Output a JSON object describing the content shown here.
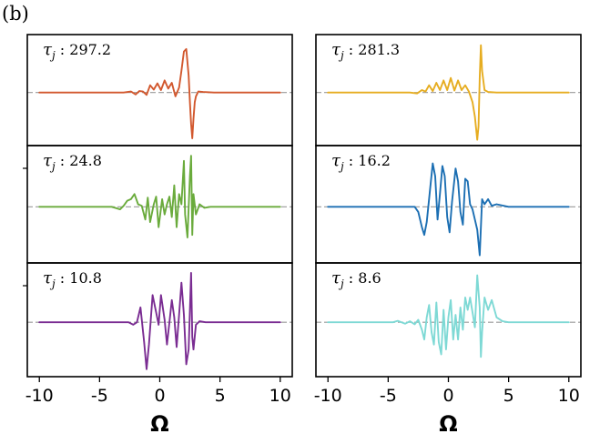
{
  "figure": {
    "panel_letter": "(b)"
  },
  "chart_data": {
    "type": "line",
    "panel_label": "(b)",
    "xlabel": "Ω",
    "xlim": [
      -11,
      11
    ],
    "xticks": [
      "-10",
      "-5",
      "0",
      "5",
      "10"
    ],
    "zero_line_color": "#999999",
    "columns": [
      {
        "panels": [
          {
            "tau_symbol": "τ",
            "tau_subscript": "j",
            "tau_value": "297.2",
            "color": "#d2582e",
            "ylim": [
              -1.1,
              1.2
            ],
            "x": [
              -10,
              -3.0,
              -2.4,
              -2.0,
              -1.7,
              -1.4,
              -1.1,
              -0.8,
              -0.5,
              -0.2,
              0.1,
              0.4,
              0.7,
              1.0,
              1.3,
              1.6,
              1.8,
              2.0,
              2.2,
              2.4,
              2.5,
              2.6,
              2.7,
              2.8,
              2.9,
              3.0,
              3.2,
              3.6,
              4.5,
              10
            ],
            "y": [
              0,
              0,
              0.02,
              -0.04,
              0.03,
              0.02,
              -0.05,
              0.15,
              0.06,
              0.19,
              0.05,
              0.25,
              0.08,
              0.2,
              -0.08,
              0.1,
              0.45,
              0.85,
              0.9,
              0.35,
              -0.2,
              -0.65,
              -0.95,
              -0.55,
              -0.2,
              -0.08,
              0.02,
              0.01,
              0,
              0
            ]
          },
          {
            "tau_symbol": "τ",
            "tau_subscript": "j",
            "tau_value": "24.8",
            "color": "#6aab3c",
            "ylim": [
              -1.1,
              1.2
            ],
            "x": [
              -10,
              -4.0,
              -3.3,
              -3.0,
              -2.7,
              -2.4,
              -2.1,
              -1.8,
              -1.5,
              -1.2,
              -1.0,
              -0.8,
              -0.5,
              -0.3,
              -0.1,
              0.2,
              0.4,
              0.6,
              0.8,
              1.0,
              1.2,
              1.4,
              1.6,
              1.8,
              2.0,
              2.1,
              2.3,
              2.5,
              2.6,
              2.7,
              2.8,
              3.0,
              3.3,
              3.7,
              4.2,
              10
            ],
            "y": [
              0,
              0,
              -0.05,
              0.02,
              0.12,
              0.15,
              0.25,
              0.05,
              0.02,
              -0.25,
              0.18,
              -0.3,
              0.05,
              0.2,
              -0.4,
              0.15,
              -0.15,
              0.05,
              0.2,
              -0.2,
              0.42,
              -0.4,
              0.25,
              0.05,
              0.9,
              -0.15,
              -0.6,
              0.6,
              1.0,
              -0.55,
              0.25,
              -0.15,
              0.05,
              -0.02,
              0,
              0
            ]
          },
          {
            "tau_symbol": "τ",
            "tau_subscript": "j",
            "tau_value": "10.8",
            "color": "#7a2c92",
            "ylim": [
              -1.1,
              1.2
            ],
            "x": [
              -10,
              -2.6,
              -2.2,
              -1.9,
              -1.6,
              -1.3,
              -1.1,
              -0.9,
              -0.6,
              -0.3,
              -0.1,
              0.1,
              0.4,
              0.6,
              0.8,
              1.0,
              1.2,
              1.4,
              1.6,
              1.8,
              2.0,
              2.2,
              2.4,
              2.6,
              2.7,
              2.8,
              3.0,
              3.3,
              3.8,
              10
            ],
            "y": [
              0,
              0,
              -0.05,
              0.0,
              0.3,
              -0.4,
              -0.95,
              -0.45,
              0.55,
              0.2,
              -0.05,
              0.55,
              0.05,
              -0.45,
              0.0,
              0.45,
              0.1,
              -0.5,
              0.15,
              0.8,
              0.15,
              -0.85,
              -0.55,
              1.0,
              -0.3,
              -0.55,
              -0.05,
              0.02,
              0,
              0
            ]
          }
        ]
      },
      {
        "panels": [
          {
            "tau_symbol": "τ",
            "tau_subscript": "j",
            "tau_value": "281.3",
            "color": "#e6ad21",
            "ylim": [
              -1.1,
              1.2
            ],
            "x": [
              -10,
              -3.2,
              -2.6,
              -2.2,
              -1.9,
              -1.6,
              -1.3,
              -1.0,
              -0.7,
              -0.4,
              -0.1,
              0.2,
              0.5,
              0.8,
              1.1,
              1.4,
              1.7,
              2.0,
              2.2,
              2.4,
              2.5,
              2.6,
              2.7,
              2.8,
              3.0,
              3.3,
              4.0,
              10
            ],
            "y": [
              0,
              0,
              -0.02,
              0.05,
              0.02,
              0.15,
              0.03,
              0.2,
              0.05,
              0.25,
              0.05,
              0.3,
              0.04,
              0.25,
              0.05,
              0.15,
              0.02,
              -0.2,
              -0.5,
              -0.98,
              -0.7,
              0.3,
              0.98,
              0.45,
              0.05,
              0.01,
              0,
              0
            ]
          },
          {
            "tau_symbol": "τ",
            "tau_subscript": "j",
            "tau_value": "16.2",
            "color": "#1c6fb3",
            "ylim": [
              -1.1,
              1.2
            ],
            "x": [
              -10,
              -3.2,
              -2.8,
              -2.5,
              -2.2,
              -2.0,
              -1.8,
              -1.5,
              -1.3,
              -1.1,
              -0.9,
              -0.7,
              -0.5,
              -0.3,
              -0.1,
              0.1,
              0.3,
              0.6,
              0.8,
              1.0,
              1.2,
              1.4,
              1.6,
              1.8,
              2.0,
              2.2,
              2.4,
              2.6,
              2.8,
              3.0,
              3.3,
              3.6,
              4.0,
              5.0,
              10
            ],
            "y": [
              0,
              0,
              0.0,
              -0.1,
              -0.4,
              -0.55,
              -0.3,
              0.4,
              0.85,
              0.6,
              -0.25,
              0.25,
              0.8,
              0.6,
              -0.2,
              -0.5,
              0.1,
              0.75,
              0.5,
              -0.1,
              -0.35,
              0.55,
              0.5,
              0.05,
              -0.05,
              -0.25,
              -0.45,
              -0.95,
              0.15,
              0.05,
              0.15,
              0.02,
              0.05,
              0,
              0
            ]
          },
          {
            "tau_symbol": "τ",
            "tau_subscript": "j",
            "tau_value": "8.6",
            "color": "#7ed9d5",
            "ylim": [
              -1.1,
              1.2
            ],
            "x": [
              -10,
              -4.6,
              -4.2,
              -3.6,
              -3.2,
              -2.8,
              -2.5,
              -2.2,
              -2.0,
              -1.8,
              -1.6,
              -1.4,
              -1.2,
              -1.0,
              -0.8,
              -0.6,
              -0.4,
              -0.2,
              0.0,
              0.2,
              0.4,
              0.6,
              0.8,
              1.0,
              1.2,
              1.4,
              1.6,
              1.8,
              2.0,
              2.2,
              2.4,
              2.6,
              2.7,
              2.8,
              3.0,
              3.3,
              3.6,
              4.0,
              4.5,
              5.0,
              10
            ],
            "y": [
              0,
              0,
              0.03,
              -0.03,
              0.02,
              -0.04,
              0.05,
              -0.15,
              -0.35,
              0.1,
              0.35,
              -0.2,
              -0.45,
              0.4,
              -0.4,
              -0.65,
              0.25,
              -0.55,
              0.1,
              0.45,
              -0.35,
              0.15,
              -0.35,
              0.3,
              -0.15,
              0.5,
              0.25,
              0.5,
              0.2,
              -0.1,
              0.95,
              0.3,
              -0.7,
              -0.2,
              0.5,
              0.25,
              0.45,
              0.1,
              0.02,
              0,
              0
            ]
          }
        ]
      }
    ]
  }
}
